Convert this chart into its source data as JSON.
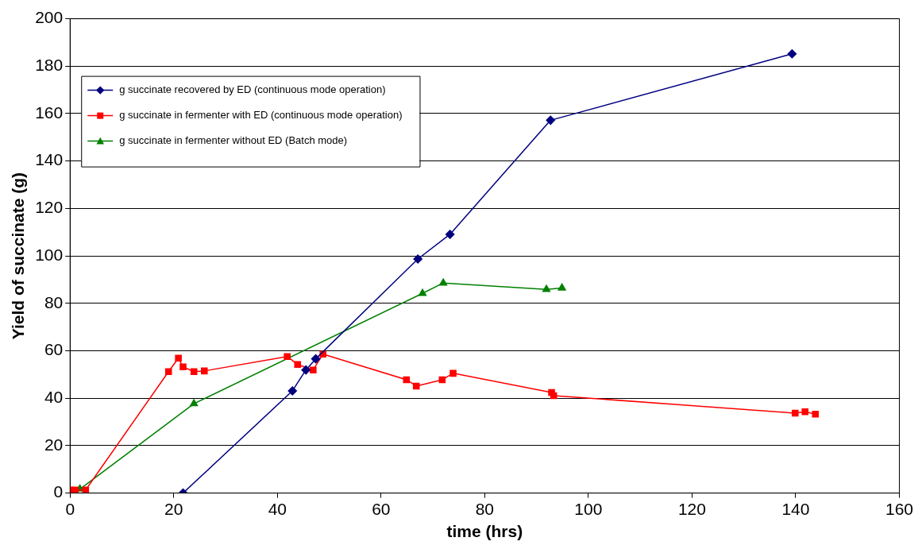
{
  "chart_data": {
    "type": "line",
    "xlabel": "time (hrs)",
    "ylabel": "Yield of succinate (g)",
    "xlim": [
      0,
      160
    ],
    "xticks": [
      0,
      20,
      40,
      60,
      80,
      100,
      120,
      140,
      160
    ],
    "ylim": [
      0,
      200
    ],
    "yticks": [
      0,
      20,
      40,
      60,
      80,
      100,
      120,
      140,
      160,
      180,
      200
    ],
    "grid": "y",
    "legend": "top left",
    "line_style": "solid",
    "series": [
      {
        "name": "g succinate recovered by ED (continuous mode operation)",
        "color": "#000080",
        "marker": "diamond",
        "x": [
          21.8,
          42.9,
          45.5,
          47.4,
          67.1,
          73.3,
          92.7,
          139.3
        ],
        "values": [
          0,
          43.1,
          51.9,
          56.6,
          98.7,
          109.1,
          157.2,
          185.2
        ]
      },
      {
        "name": "g succinate in fermenter with ED (continuous mode operation)",
        "color": "#ff0000",
        "marker": "square",
        "x": [
          0,
          1,
          3,
          19,
          20.9,
          21.8,
          23.9,
          25.9,
          41.9,
          43.9,
          46.9,
          48.8,
          64.9,
          66.8,
          71.8,
          73.9,
          92.9,
          93.3,
          139.9,
          141.8,
          143.8
        ],
        "values": [
          1.3,
          1.3,
          1.3,
          51.2,
          56.9,
          53.2,
          51.2,
          51.5,
          57.6,
          54.2,
          51.9,
          58.6,
          47.8,
          45.1,
          47.8,
          50.5,
          42.4,
          41.1,
          33.7,
          34.3,
          33.3
        ]
      },
      {
        "name": "g succinate in fermenter without ED (Batch mode)",
        "color": "#008000",
        "marker": "triangle",
        "x": [
          0,
          1.9,
          23.9,
          68,
          72,
          91.9,
          94.9
        ],
        "values": [
          0.3,
          1.7,
          37.7,
          84.2,
          88.6,
          85.9,
          86.5
        ]
      }
    ]
  }
}
